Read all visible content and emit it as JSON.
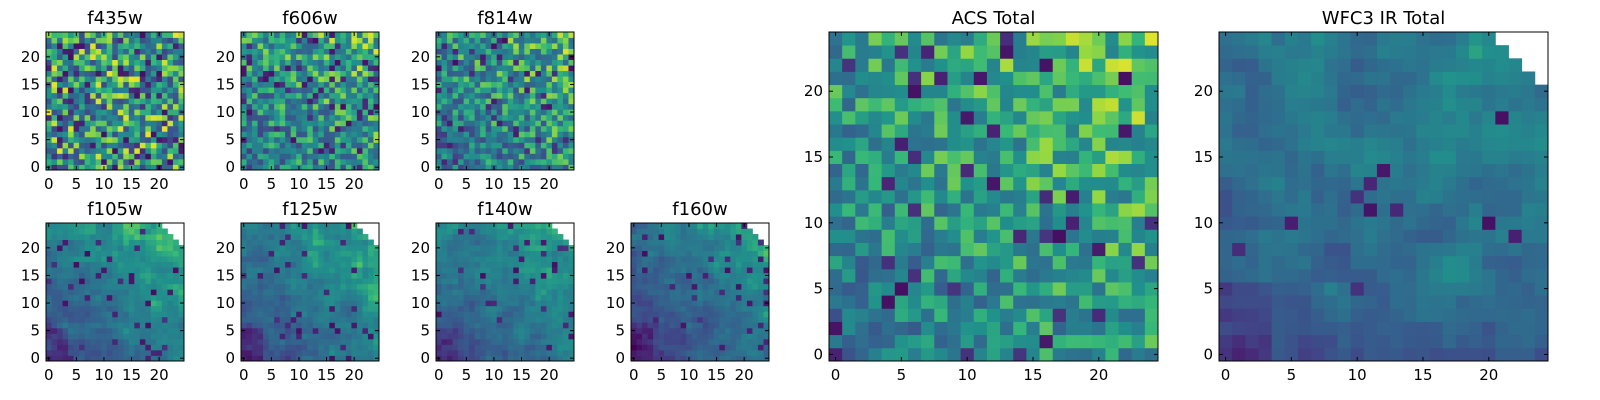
{
  "chart_data": [
    {
      "type": "heatmap",
      "title": "f435w",
      "xlim": [
        -0.5,
        24.5
      ],
      "ylim": [
        -0.5,
        24.5
      ],
      "xticks": [
        0,
        5,
        10,
        15,
        20
      ],
      "yticks": [
        0,
        5,
        10,
        15,
        20
      ],
      "pattern": "noise",
      "base": 0.62,
      "spread": 0.36,
      "dark_fraction": 0.1,
      "masked_corner": false,
      "seed": 3,
      "colormap": "viridis"
    },
    {
      "type": "heatmap",
      "title": "f606w",
      "xlim": [
        -0.5,
        24.5
      ],
      "ylim": [
        -0.5,
        24.5
      ],
      "xticks": [
        0,
        5,
        10,
        15,
        20
      ],
      "yticks": [
        0,
        5,
        10,
        15,
        20
      ],
      "pattern": "noise-gradient",
      "base": 0.58,
      "spread": 0.34,
      "dark_fraction": 0.08,
      "masked_corner": false,
      "seed": 11,
      "colormap": "viridis"
    },
    {
      "type": "heatmap",
      "title": "f814w",
      "xlim": [
        -0.5,
        24.5
      ],
      "ylim": [
        -0.5,
        24.5
      ],
      "xticks": [
        0,
        5,
        10,
        15,
        20
      ],
      "yticks": [
        0,
        5,
        10,
        15,
        20
      ],
      "pattern": "noise-gradient",
      "base": 0.56,
      "spread": 0.34,
      "dark_fraction": 0.08,
      "masked_corner": false,
      "seed": 19,
      "colormap": "viridis"
    },
    {
      "type": "heatmap",
      "title": "f105w",
      "xlim": [
        -0.5,
        24.5
      ],
      "ylim": [
        -0.5,
        24.5
      ],
      "xticks": [
        0,
        5,
        10,
        15,
        20
      ],
      "yticks": [
        0,
        5,
        10,
        15,
        20
      ],
      "pattern": "smooth-gradient",
      "base": 0.52,
      "spread": 0.26,
      "dark_fraction": 0.06,
      "masked_corner": true,
      "seed": 23,
      "colormap": "viridis"
    },
    {
      "type": "heatmap",
      "title": "f125w",
      "xlim": [
        -0.5,
        24.5
      ],
      "ylim": [
        -0.5,
        24.5
      ],
      "xticks": [
        0,
        5,
        10,
        15,
        20
      ],
      "yticks": [
        0,
        5,
        10,
        15,
        20
      ],
      "pattern": "smooth-gradient",
      "base": 0.5,
      "spread": 0.26,
      "dark_fraction": 0.06,
      "masked_corner": true,
      "seed": 31,
      "colormap": "viridis"
    },
    {
      "type": "heatmap",
      "title": "f140w",
      "xlim": [
        -0.5,
        24.5
      ],
      "ylim": [
        -0.5,
        24.5
      ],
      "xticks": [
        0,
        5,
        10,
        15,
        20
      ],
      "yticks": [
        0,
        5,
        10,
        15,
        20
      ],
      "pattern": "smooth-gradient",
      "base": 0.5,
      "spread": 0.24,
      "dark_fraction": 0.05,
      "masked_corner": true,
      "seed": 37,
      "colormap": "viridis"
    },
    {
      "type": "heatmap",
      "title": "f160w",
      "xlim": [
        -0.5,
        24.5
      ],
      "ylim": [
        -0.5,
        24.5
      ],
      "xticks": [
        0,
        5,
        10,
        15,
        20
      ],
      "yticks": [
        0,
        5,
        10,
        15,
        20
      ],
      "pattern": "smooth-gradient",
      "base": 0.44,
      "spread": 0.26,
      "dark_fraction": 0.06,
      "masked_corner": true,
      "seed": 41,
      "colormap": "viridis"
    },
    {
      "type": "heatmap",
      "title": "ACS Total",
      "xlim": [
        -0.5,
        24.5
      ],
      "ylim": [
        -0.5,
        24.5
      ],
      "xticks": [
        0,
        5,
        10,
        15,
        20
      ],
      "yticks": [
        0,
        5,
        10,
        15,
        20
      ],
      "pattern": "noise-gradient",
      "base": 0.62,
      "spread": 0.26,
      "dark_fraction": 0.05,
      "masked_corner": false,
      "seed": 47,
      "colormap": "viridis"
    },
    {
      "type": "heatmap",
      "title": "WFC3 IR Total",
      "xlim": [
        -0.5,
        24.5
      ],
      "ylim": [
        -0.5,
        24.5
      ],
      "xticks": [
        0,
        5,
        10,
        15,
        20
      ],
      "yticks": [
        0,
        5,
        10,
        15,
        20
      ],
      "pattern": "smooth-gradient",
      "base": 0.46,
      "spread": 0.16,
      "dark_fraction": 0.03,
      "masked_corner": true,
      "seed": 53,
      "colormap": "viridis"
    }
  ]
}
